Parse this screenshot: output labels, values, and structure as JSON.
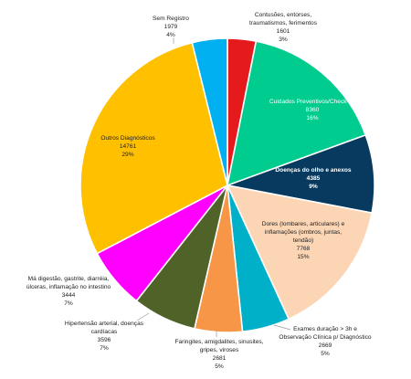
{
  "chart_data": {
    "type": "pie",
    "start_angle_deg": 0,
    "direction": "clockwise",
    "slices": [
      {
        "label": [
          "Contusões, entorses,",
          "traumatismos, ferimentos"
        ],
        "value": 1601,
        "percent": "3%",
        "color": "#e41a1c",
        "label_style": "outside"
      },
      {
        "label": [
          "Cuidados Preventivos/Check-up"
        ],
        "value": 8360,
        "percent": "16%",
        "color": "#00cc8f",
        "label_style": "inside-white"
      },
      {
        "label": [
          "Doenças do olho e anexos"
        ],
        "value": 4385,
        "percent": "9%",
        "color": "#073a5e",
        "label_style": "inside-white-bold"
      },
      {
        "label": [
          "Dores (lombares, articulares) e",
          "inflamações (ombros, juntas,",
          "tendão)"
        ],
        "value": 7768,
        "percent": "15%",
        "color": "#fcd5b4",
        "label_style": "inside-dark"
      },
      {
        "label": [
          "Exames duração > 3h e",
          "Observação Clínica p/ Diagnóstico"
        ],
        "value": 2669,
        "percent": "5%",
        "color": "#00b0c8",
        "label_style": "outside"
      },
      {
        "label": [
          "Faringites, amigdalites, sinusites,",
          "gripes, viroses"
        ],
        "value": 2681,
        "percent": "5%",
        "color": "#f79646",
        "label_style": "outside"
      },
      {
        "label": [
          "Hipertensão arterial, doenças",
          "cardíacas"
        ],
        "value": 3596,
        "percent": "7%",
        "color": "#4f6228",
        "label_style": "outside"
      },
      {
        "label": [
          "Má digestão, gastrite, diarréia,",
          "úlceras, inflamação no intestino"
        ],
        "value": 3444,
        "percent": "7%",
        "color": "#ff00ff",
        "label_style": "outside"
      },
      {
        "label": [
          "Outros Diagnósticos"
        ],
        "value": 14761,
        "percent": "29%",
        "color": "#ffc000",
        "label_style": "inside-dark"
      },
      {
        "label": [
          "Sem Registro"
        ],
        "value": 1979,
        "percent": "4%",
        "color": "#00b0f0",
        "label_style": "outside"
      }
    ]
  }
}
